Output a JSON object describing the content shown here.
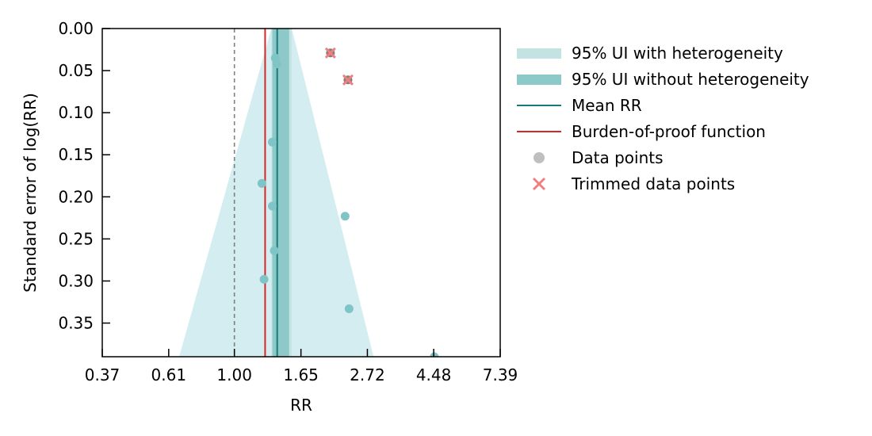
{
  "chart_data": {
    "type": "scatter",
    "title": "",
    "xlabel": "RR",
    "ylabel": "Standard error of log(RR)",
    "x_scale": "log",
    "xlim": [
      0.37,
      7.39
    ],
    "ylim": [
      0.39,
      0.0
    ],
    "y_inverted": true,
    "x_ticks": [
      {
        "value": 0.37,
        "label": "0.37"
      },
      {
        "value": 0.61,
        "label": "0.61"
      },
      {
        "value": 1.0,
        "label": "1.00"
      },
      {
        "value": 1.65,
        "label": "1.65"
      },
      {
        "value": 2.72,
        "label": "2.72"
      },
      {
        "value": 4.48,
        "label": "4.48"
      },
      {
        "value": 7.39,
        "label": "7.39"
      }
    ],
    "y_ticks": [
      {
        "value": 0.0,
        "label": "0.00"
      },
      {
        "value": 0.05,
        "label": "0.05"
      },
      {
        "value": 0.1,
        "label": "0.10"
      },
      {
        "value": 0.15,
        "label": "0.15"
      },
      {
        "value": 0.2,
        "label": "0.20"
      },
      {
        "value": 0.25,
        "label": "0.25"
      },
      {
        "value": 0.3,
        "label": "0.30"
      },
      {
        "value": 0.35,
        "label": "0.35"
      }
    ],
    "reference_rr": 1.0,
    "mean_rr": 1.38,
    "burden_of_proof_rr": 1.26,
    "ui_without_heterogeneity": [
      1.33,
      1.51
    ],
    "ui_with_heterogeneity_at_zero_se": [
      1.32,
      1.54
    ],
    "funnel_with_heterogeneity": {
      "se_max": 0.39,
      "rr_low_at_se_max": 0.66,
      "rr_high_at_se_max": 2.85
    },
    "data_points": [
      {
        "rr": 1.36,
        "se": 0.035
      },
      {
        "rr": 1.38,
        "se": 0.042
      },
      {
        "rr": 1.33,
        "se": 0.135
      },
      {
        "rr": 1.23,
        "se": 0.184
      },
      {
        "rr": 1.33,
        "se": 0.211
      },
      {
        "rr": 2.3,
        "se": 0.223
      },
      {
        "rr": 1.35,
        "se": 0.264
      },
      {
        "rr": 1.25,
        "se": 0.298
      },
      {
        "rr": 2.37,
        "se": 0.333
      },
      {
        "rr": 4.5,
        "se": 0.39
      }
    ],
    "trimmed_points": [
      {
        "rr": 2.06,
        "se": 0.029
      },
      {
        "rr": 2.35,
        "se": 0.061
      }
    ],
    "legend": {
      "placement": "outside-right",
      "entries": [
        {
          "label": "95% UI with heterogeneity",
          "marker": "band-light"
        },
        {
          "label": "95% UI without heterogeneity",
          "marker": "band-dark"
        },
        {
          "label": "Mean RR",
          "marker": "line-teal"
        },
        {
          "label": "Burden-of-proof function",
          "marker": "line-red"
        },
        {
          "label": "Data points",
          "marker": "dot-gray"
        },
        {
          "label": "Trimmed data points",
          "marker": "x-red"
        }
      ]
    },
    "colors": {
      "band_light": "#d3edf0",
      "band_mid": "#c3e3e3",
      "band_dark": "#8ec9c9",
      "mean_line": "#1a7a7a",
      "bop_line": "#d62728",
      "point": "#7fc4c7",
      "trimmed": "#f08080",
      "trimmed_inner": "#808080",
      "reference": "#808080",
      "legend_dot": "#bfbfbf"
    }
  }
}
